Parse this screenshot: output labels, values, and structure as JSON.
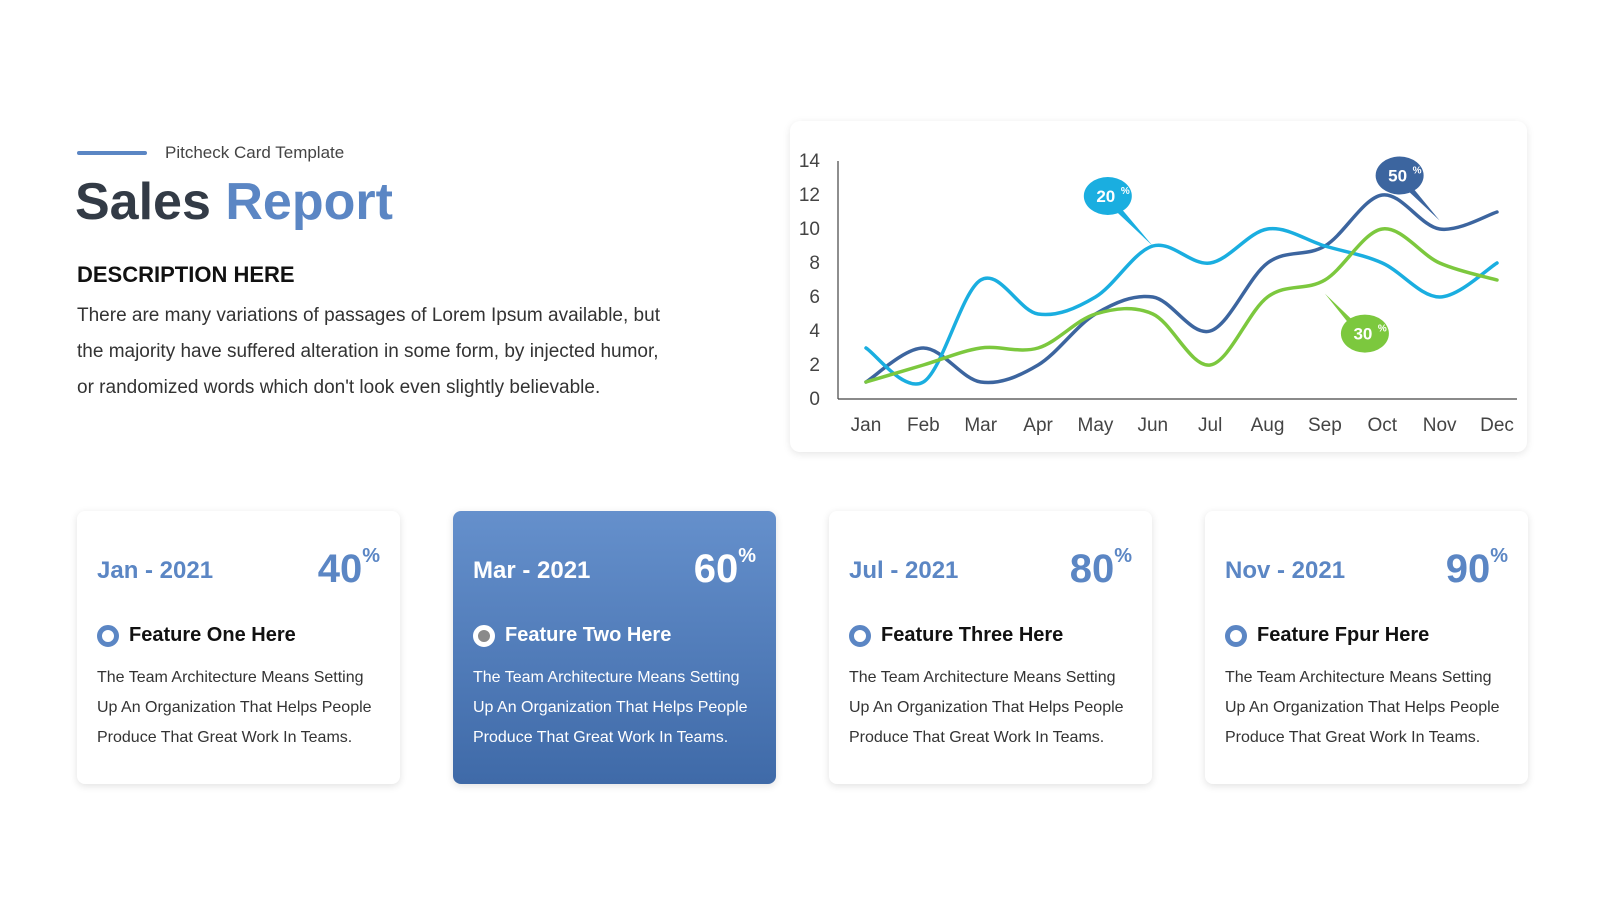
{
  "header": {
    "eyebrow": "Pitcheck Card Template",
    "title_main": "Sales",
    "title_accent": "Report"
  },
  "description": {
    "heading": "DESCRIPTION HERE",
    "body": "There are many variations of passages of Lorem Ipsum available, but the majority have suffered alteration in some form, by injected humor, or randomized words which don't look even slightly believable."
  },
  "colors": {
    "accent": "#5b86c4",
    "dark_blue": "#3c659f",
    "light_blue": "#1aaee0",
    "green": "#7cc83e"
  },
  "chart_data": {
    "type": "line",
    "categories": [
      "Jan",
      "Feb",
      "Mar",
      "Apr",
      "May",
      "Jun",
      "Jul",
      "Aug",
      "Sep",
      "Oct",
      "Nov",
      "Dec"
    ],
    "ylim": [
      0,
      14
    ],
    "yticks": [
      0,
      2,
      4,
      6,
      8,
      10,
      12,
      14
    ],
    "title": "",
    "xlabel": "",
    "ylabel": "",
    "grid": false,
    "series": [
      {
        "color": "#3c659f",
        "values": [
          1,
          3,
          1,
          2,
          5,
          6,
          4,
          8,
          9,
          12,
          10,
          11
        ]
      },
      {
        "color": "#1aaee0",
        "values": [
          3,
          1,
          7,
          5,
          6,
          9,
          8,
          10,
          9,
          8,
          6,
          8
        ]
      },
      {
        "color": "#7cc83e",
        "values": [
          1,
          2,
          3,
          3,
          5,
          5,
          2,
          6,
          7,
          10,
          8,
          7
        ]
      }
    ],
    "annotations": [
      {
        "label": "20",
        "unit": "%",
        "color": "#1aaee0",
        "category": "Jun",
        "value": 9
      },
      {
        "label": "50",
        "unit": "%",
        "color": "#3c659f",
        "category": "Nov",
        "value": 10.5
      },
      {
        "label": "30",
        "unit": "%",
        "color": "#7cc83e",
        "category": "Sep",
        "value": 6.2
      }
    ]
  },
  "cards": [
    {
      "date": "Jan - 2021",
      "percent": "40",
      "unit": "%",
      "feature": "Feature One Here",
      "text": "The Team Architecture Means Setting Up An Organization That Helps People Produce That Great Work In Teams."
    },
    {
      "date": "Mar - 2021",
      "percent": "60",
      "unit": "%",
      "feature": "Feature Two Here",
      "text": "The Team Architecture Means Setting Up An Organization That Helps People Produce That Great Work In Teams."
    },
    {
      "date": "Jul - 2021",
      "percent": "80",
      "unit": "%",
      "feature": "Feature Three Here",
      "text": "The Team Architecture Means Setting Up An Organization That Helps People Produce That Great Work In Teams."
    },
    {
      "date": "Nov - 2021",
      "percent": "90",
      "unit": "%",
      "feature": "Feature Fpur Here",
      "text": "The Team Architecture Means Setting Up An Organization That Helps People Produce That Great Work In Teams."
    }
  ]
}
